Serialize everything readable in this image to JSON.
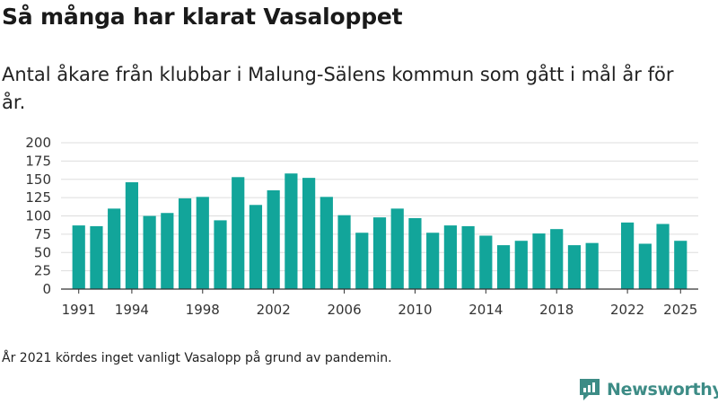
{
  "header": {
    "title": "Så många har klarat Vasaloppet",
    "subtitle": "Antal åkare från klubbar i Malung-Sälens kommun som gått i mål år för år."
  },
  "footer": {
    "note": "År 2021 kördes inget vanligt Vasalopp på grund av pandemin.",
    "brand": "Newsworthy"
  },
  "colors": {
    "bar": "#12a59a",
    "grid": "#dddddd",
    "axis": "#333333",
    "brand": "#3d8c86"
  },
  "icons": {
    "brand_logo": "newsworthy-logo-icon"
  },
  "chart_data": {
    "type": "bar",
    "x": [
      1991,
      1992,
      1993,
      1994,
      1995,
      1996,
      1997,
      1998,
      1999,
      2000,
      2001,
      2002,
      2003,
      2004,
      2005,
      2006,
      2007,
      2008,
      2009,
      2010,
      2011,
      2012,
      2013,
      2014,
      2015,
      2016,
      2017,
      2018,
      2019,
      2020,
      2021,
      2022,
      2023,
      2024,
      2025
    ],
    "values": [
      87,
      86,
      110,
      146,
      100,
      104,
      124,
      126,
      94,
      153,
      115,
      135,
      158,
      152,
      126,
      101,
      77,
      98,
      110,
      97,
      77,
      87,
      86,
      73,
      60,
      66,
      76,
      82,
      60,
      63,
      null,
      91,
      62,
      89,
      66
    ],
    "x_ticks": [
      1991,
      1994,
      1998,
      2002,
      2006,
      2010,
      2014,
      2018,
      2022,
      2025
    ],
    "y_ticks": [
      0,
      25,
      50,
      75,
      100,
      125,
      150,
      175,
      200
    ],
    "ylim": [
      0,
      200
    ],
    "xlim": [
      1990,
      2026
    ],
    "grid": true,
    "title": "Så många har klarat Vasaloppet",
    "xlabel": "",
    "ylabel": ""
  }
}
